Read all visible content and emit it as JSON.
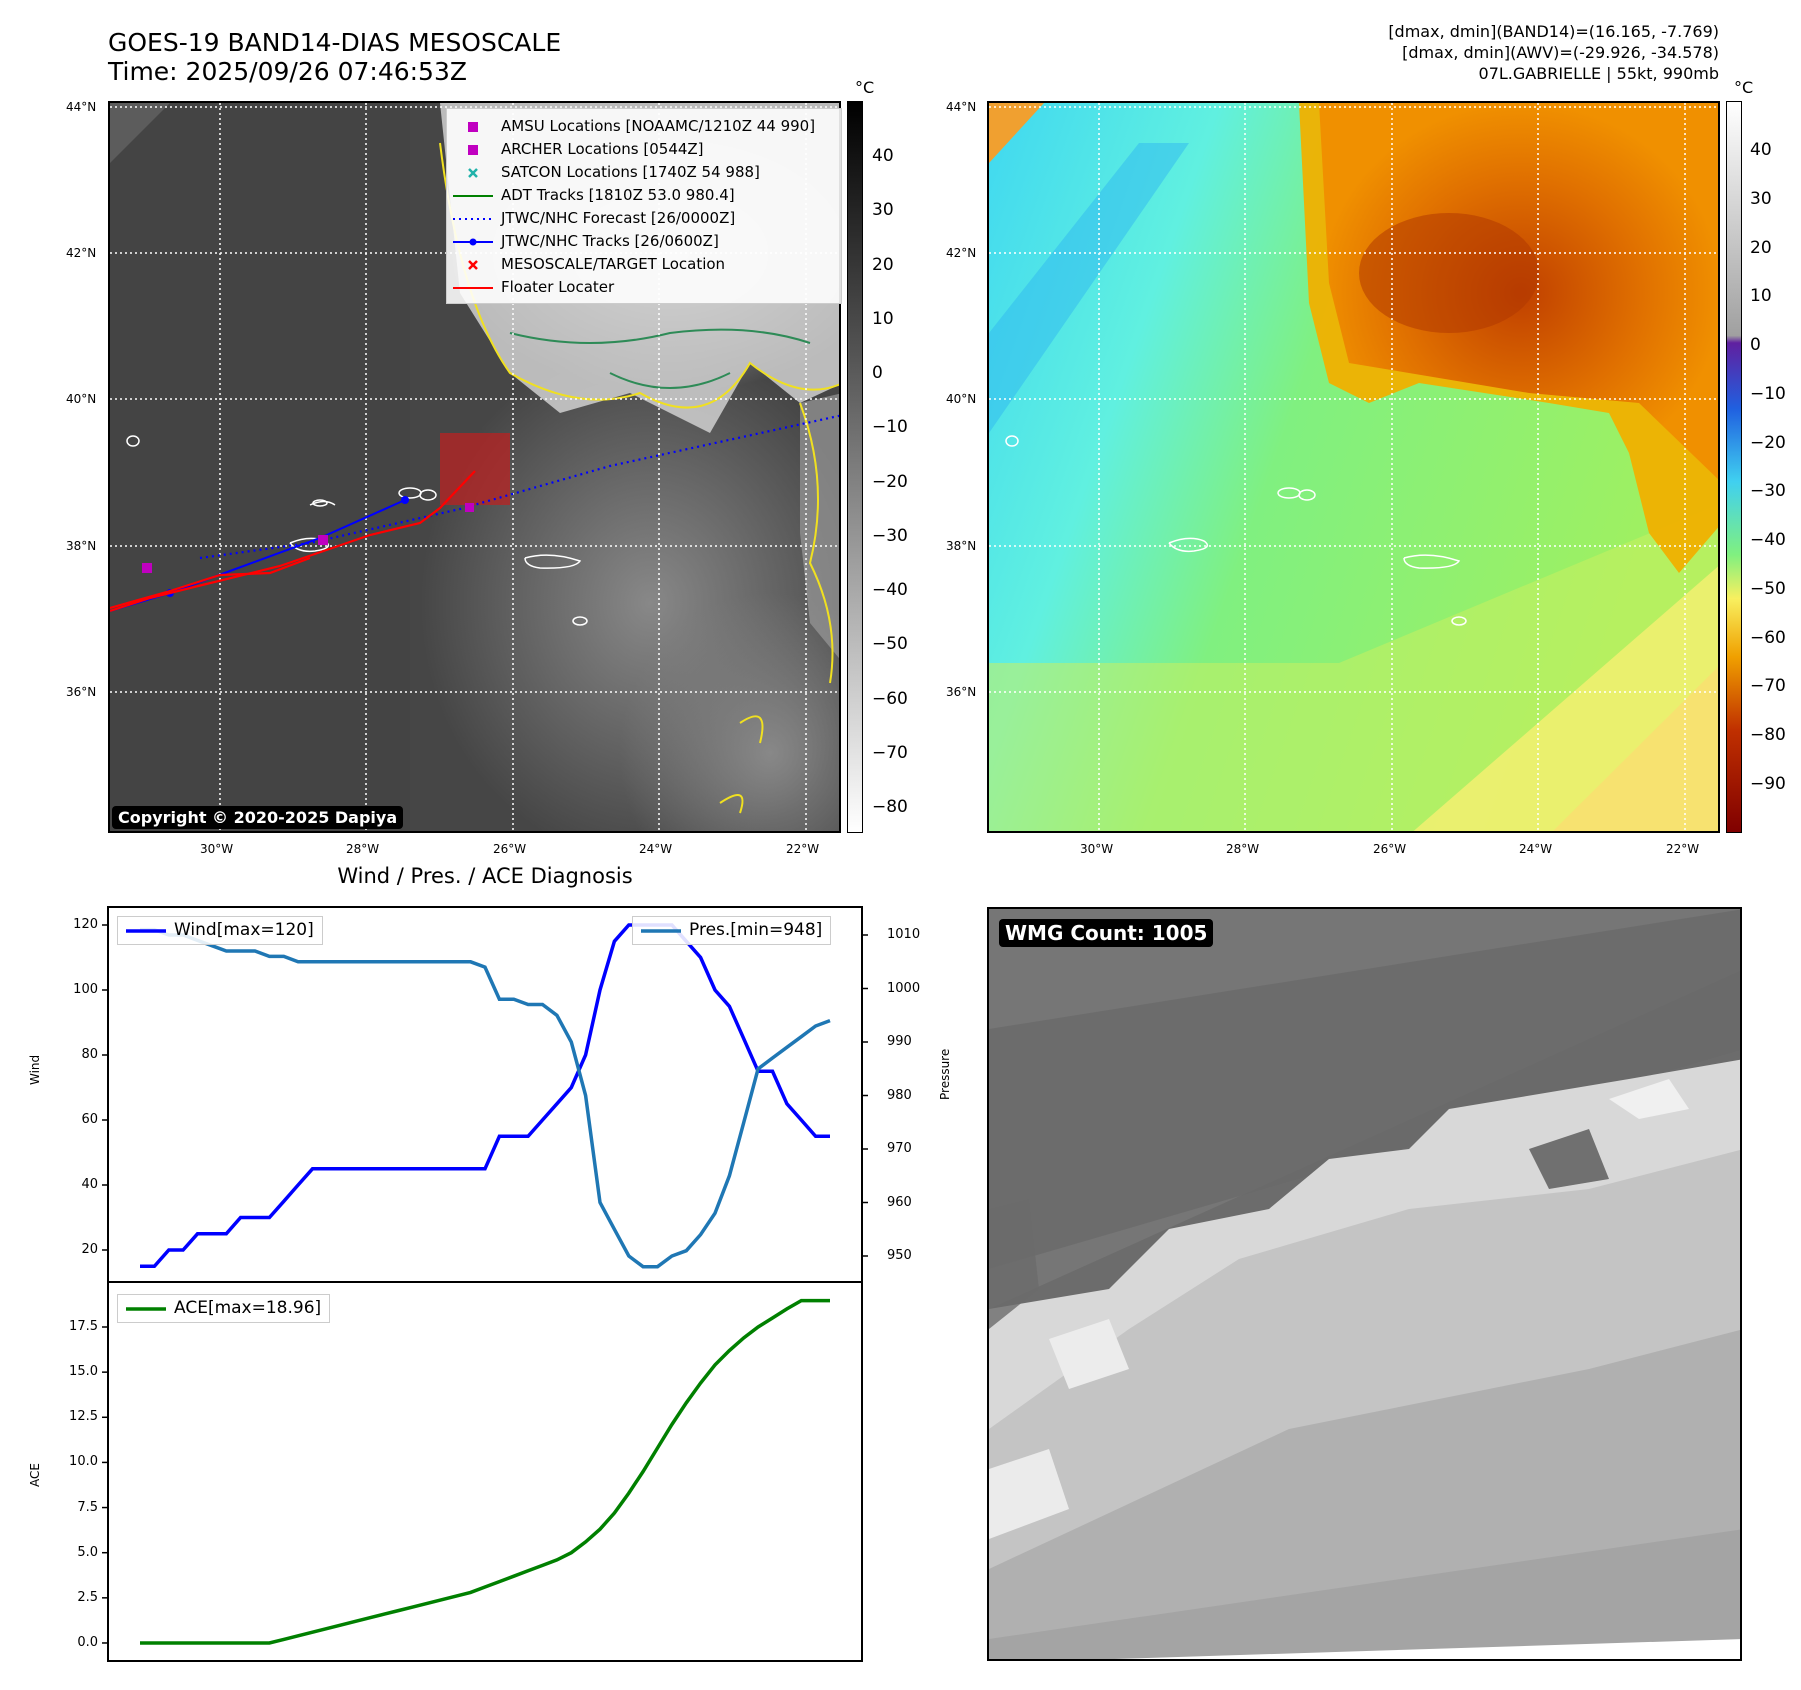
{
  "header": {
    "title_line1": "GOES-19 BAND14-DIAS MESOSCALE",
    "title_line2": "Time: 2025/09/26 07:46:53Z",
    "info_line1": "[dmax, dmin](BAND14)=(16.165, -7.769)",
    "info_line2": "[dmax, dmin](AWV)=(-29.926, -34.578)",
    "info_line3": "07L.GABRIELLE | 55kt, 990mb"
  },
  "map": {
    "lat_labels": [
      "44°N",
      "42°N",
      "40°N",
      "38°N",
      "36°N"
    ],
    "lon_labels": [
      "30°W",
      "28°W",
      "26°W",
      "24°W",
      "22°W"
    ],
    "copyright": "Copyright © 2020-2025 Dapiya",
    "legend": [
      {
        "label": "AMSU Locations [NOAAMC/1210Z 44 990]",
        "color": "#c000c0"
      },
      {
        "label": "ARCHER Locations [0544Z]",
        "color": "#c000c0"
      },
      {
        "label": "SATCON Locations [1740Z 54 988]",
        "color": "#20b2aa"
      },
      {
        "label": "ADT Tracks [1810Z 53.0 980.4]",
        "color": "#008000"
      },
      {
        "label": "JTWC/NHC Forecast [26/0000Z]",
        "color": "#0000ff"
      },
      {
        "label": "JTWC/NHC Tracks [26/0600Z]",
        "color": "#0000ff"
      },
      {
        "label": "MESOSCALE/TARGET Location",
        "color": "#ff0000"
      },
      {
        "label": "Floater Locater",
        "color": "#ff0000"
      }
    ],
    "colorbar1": {
      "unit": "°C",
      "ticks": [
        "40",
        "30",
        "20",
        "10",
        "0",
        "−10",
        "−20",
        "−30",
        "−40",
        "−50",
        "−60",
        "−70",
        "−80"
      ]
    },
    "colorbar2": {
      "unit": "°C",
      "ticks": [
        "40",
        "30",
        "20",
        "10",
        "0",
        "−10",
        "−20",
        "−30",
        "−40",
        "−50",
        "−60",
        "−70",
        "−80",
        "−90"
      ]
    }
  },
  "diag": {
    "title": "Wind / Pres. / ACE Diagnosis",
    "wind_label": "Wind",
    "pressure_label": "Pressure",
    "ace_label": "ACE",
    "wind_legend": "Wind[max=120]",
    "pres_legend": "Pres.[min=948]",
    "ace_legend": "ACE[max=18.96]",
    "wind_ticks": [
      "120",
      "100",
      "80",
      "60",
      "40",
      "20"
    ],
    "pres_ticks": [
      "1010",
      "1000",
      "990",
      "980",
      "970",
      "960",
      "950"
    ],
    "ace_ticks": [
      "17.5",
      "15.0",
      "12.5",
      "10.0",
      "7.5",
      "5.0",
      "2.5",
      "0.0"
    ]
  },
  "wmg": {
    "badge": "WMG Count: 1005"
  },
  "chart_data": [
    {
      "type": "line",
      "title": "Wind / Pres. / ACE Diagnosis",
      "ylabel": "Wind",
      "ylim": [
        15,
        125
      ],
      "series": [
        {
          "name": "Wind[max=120]",
          "color": "#0000ff",
          "values": [
            15,
            15,
            20,
            20,
            25,
            25,
            25,
            30,
            30,
            30,
            35,
            40,
            45,
            45,
            45,
            45,
            45,
            45,
            45,
            45,
            45,
            45,
            45,
            45,
            45,
            55,
            55,
            55,
            60,
            65,
            70,
            80,
            100,
            115,
            120,
            120,
            120,
            120,
            115,
            110,
            100,
            95,
            85,
            75,
            75,
            65,
            60,
            55,
            55
          ]
        }
      ]
    },
    {
      "type": "line",
      "ylabel": "Pressure",
      "ylim": [
        945,
        1013
      ],
      "series": [
        {
          "name": "Pres.[min=948]",
          "color": "#1f77b4",
          "values": [
            1011,
            1011,
            1010,
            1010,
            1009,
            1008,
            1007,
            1007,
            1007,
            1006,
            1006,
            1005,
            1005,
            1005,
            1005,
            1005,
            1005,
            1005,
            1005,
            1005,
            1005,
            1005,
            1005,
            1005,
            1004,
            998,
            998,
            997,
            997,
            995,
            990,
            980,
            960,
            955,
            950,
            948,
            948,
            950,
            951,
            954,
            958,
            965,
            975,
            985,
            987,
            989,
            991,
            993,
            994
          ]
        }
      ]
    },
    {
      "type": "line",
      "ylabel": "ACE",
      "ylim": [
        -0.8,
        19.5
      ],
      "series": [
        {
          "name": "ACE[max=18.96]",
          "color": "#008000",
          "values": [
            0,
            0,
            0,
            0,
            0,
            0,
            0,
            0,
            0,
            0,
            0.2,
            0.4,
            0.6,
            0.8,
            1.0,
            1.2,
            1.4,
            1.6,
            1.8,
            2.0,
            2.2,
            2.4,
            2.6,
            2.8,
            3.1,
            3.4,
            3.7,
            4.0,
            4.3,
            4.6,
            5.0,
            5.6,
            6.3,
            7.2,
            8.3,
            9.5,
            10.8,
            12.1,
            13.3,
            14.4,
            15.4,
            16.2,
            16.9,
            17.5,
            18.0,
            18.5,
            18.96,
            18.96,
            18.96
          ]
        }
      ]
    }
  ]
}
